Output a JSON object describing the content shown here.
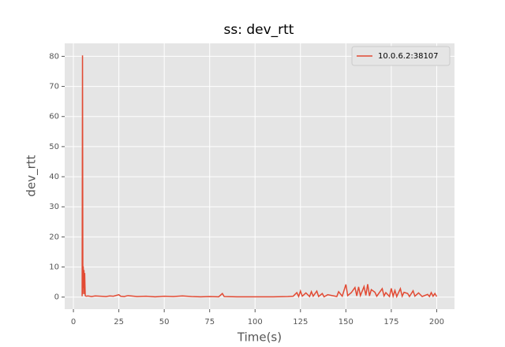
{
  "chart_data": {
    "type": "line",
    "title": "ss: dev_rtt",
    "x_label": "Time(s)",
    "y_label": "dev_rtt",
    "x": [
      4.8,
      5.0,
      5.2,
      5.4,
      5.6,
      5.8,
      6.0,
      6.2,
      6.5,
      7,
      8,
      10,
      12,
      15,
      18,
      20,
      22,
      25,
      26,
      28,
      30,
      35,
      40,
      45,
      50,
      55,
      60,
      65,
      70,
      75,
      80,
      82,
      83,
      90,
      100,
      110,
      118,
      121,
      123,
      124,
      125,
      126,
      128,
      130,
      131,
      132,
      134,
      135,
      137,
      138,
      140,
      145,
      146,
      148,
      150,
      151,
      153,
      155,
      156,
      157,
      158,
      160,
      161,
      162,
      163,
      164,
      166,
      167,
      170,
      171,
      172,
      174,
      175,
      176,
      177,
      178,
      180,
      181,
      182,
      184,
      185,
      187,
      188,
      190,
      192,
      195,
      196,
      197,
      198,
      199,
      200
    ],
    "series": [
      {
        "name": "10.0.6.2:38107",
        "color": "#e24a33",
        "values": [
          0.3,
          80.3,
          1,
          10.2,
          3,
          9,
          1,
          8,
          0.5,
          0.3,
          0.4,
          0.2,
          0.4,
          0.3,
          0.2,
          0.4,
          0.3,
          0.8,
          0.3,
          0.2,
          0.5,
          0.2,
          0.3,
          0.1,
          0.3,
          0.2,
          0.4,
          0.2,
          0.1,
          0.2,
          0.1,
          1.2,
          0.2,
          0.1,
          0.1,
          0.1,
          0.2,
          0.3,
          1.5,
          0.2,
          2,
          0.3,
          1.4,
          0.2,
          1.8,
          0.3,
          2,
          0.2,
          1.2,
          0.1,
          0.8,
          0.2,
          1.8,
          0.3,
          4.2,
          0.5,
          1.5,
          3.2,
          0.4,
          3.4,
          0.5,
          3.5,
          0.6,
          4.3,
          0.4,
          2.5,
          1.6,
          0.3,
          2.8,
          0.4,
          1.5,
          0.2,
          2.9,
          0.3,
          2.2,
          0.2,
          2.8,
          0.3,
          1.6,
          1.2,
          0.2,
          2.1,
          0.3,
          1.4,
          0.2,
          0.9,
          0.2,
          1.5,
          0.3,
          1.2,
          0.2
        ]
      }
    ],
    "xlim": [
      -4.8,
      209.8
    ],
    "ylim": [
      -4.0,
      84.3
    ],
    "xticks": [
      0,
      25,
      50,
      75,
      100,
      125,
      150,
      175,
      200
    ],
    "yticks": [
      0,
      10,
      20,
      30,
      40,
      50,
      60,
      70,
      80
    ],
    "grid": true,
    "legend": "upper right"
  }
}
